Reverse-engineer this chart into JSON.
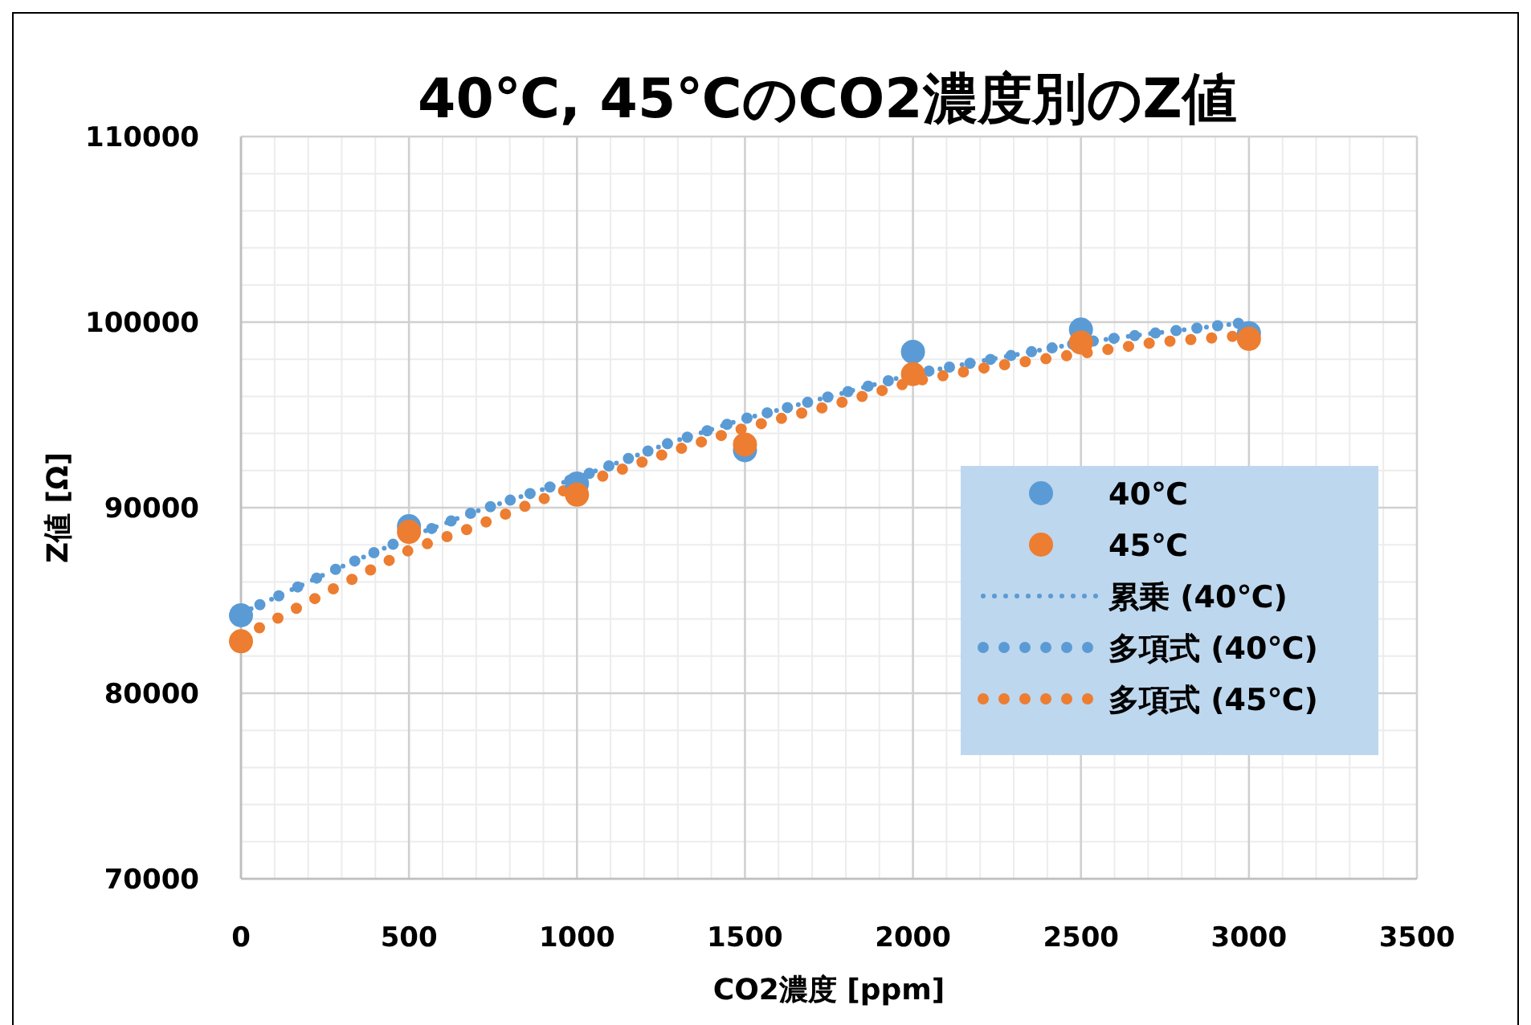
{
  "chart_data": {
    "type": "scatter",
    "title": "40℃, 45℃のCO2濃度別のZ値",
    "xlabel": "CO2濃度 [ppm]",
    "ylabel": "Z値 [Ω]",
    "xlim": [
      0,
      3500
    ],
    "xticks": [
      0,
      500,
      1000,
      1500,
      2000,
      2500,
      3000,
      3500
    ],
    "ylim": [
      70000,
      110000
    ],
    "yticks": [
      70000,
      80000,
      90000,
      100000,
      110000
    ],
    "grid": true,
    "legend": "right",
    "series": [
      {
        "name": "40℃",
        "marker": "circle",
        "color": "#5b9bd5",
        "x": [
          0,
          500,
          1000,
          1500,
          2000,
          2500,
          3000
        ],
        "values": [
          84200,
          89000,
          91300,
          93100,
          98400,
          99600,
          99400
        ]
      },
      {
        "name": "45℃",
        "marker": "circle",
        "color": "#ed7d31",
        "x": [
          0,
          500,
          1000,
          1500,
          2000,
          2500,
          3000
        ],
        "values": [
          82800,
          88700,
          90700,
          93400,
          97200,
          98900,
          99100
        ]
      },
      {
        "name": "累乗 (40℃)",
        "type": "line",
        "line_style": "dotted",
        "color": "#5b9bd5",
        "x": [
          0,
          272,
          500,
          684,
          1000,
          1277,
          1500,
          1755,
          2000,
          2233,
          2500,
          2716,
          3000
        ],
        "values": [
          84300,
          86600,
          88400,
          89700,
          91600,
          93500,
          94800,
          96000,
          97200,
          98000,
          98900,
          99400,
          100000
        ]
      },
      {
        "name": "多項式 (40℃)",
        "type": "line",
        "line_style": "dotted",
        "color": "#5b9bd5",
        "x": [
          0,
          272,
          500,
          684,
          1000,
          1277,
          1500,
          1755,
          2000,
          2233,
          2500,
          2716,
          3000
        ],
        "values": [
          84300,
          86600,
          88400,
          89700,
          91600,
          93500,
          94800,
          96000,
          97200,
          98000,
          98900,
          99400,
          100000
        ]
      },
      {
        "name": "多項式 (45℃)",
        "type": "line",
        "line_style": "dotted",
        "color": "#ed7d31",
        "x": [
          0,
          272,
          500,
          684,
          1000,
          1277,
          1500,
          1755,
          2000,
          2233,
          2500,
          2716,
          3000
        ],
        "values": [
          83000,
          85600,
          87700,
          88900,
          91200,
          93000,
          94300,
          95500,
          96800,
          97600,
          98300,
          98900,
          99300
        ]
      }
    ]
  }
}
